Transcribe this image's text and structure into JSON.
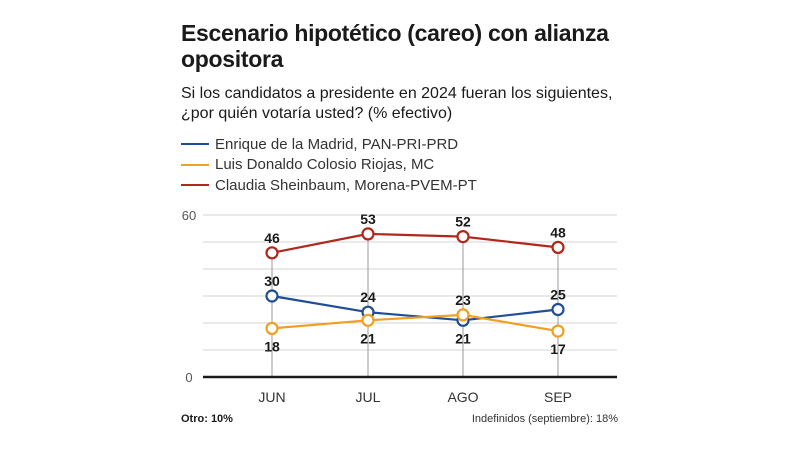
{
  "chart_data": {
    "type": "line",
    "title": "Escenario hipotético (careo) con alianza opositora",
    "subtitle": "Si los candidatos a presidente en 2024 fueran los siguientes, ¿por quién votaría usted?  (% efectivo)",
    "xlabel": "",
    "ylabel": "",
    "categories": [
      "JUN",
      "JUL",
      "AGO",
      "SEP"
    ],
    "ylim": [
      0,
      60
    ],
    "yticks": [
      0,
      60
    ],
    "grid_step": 10,
    "grid": true,
    "legend_position": "top-left",
    "series": [
      {
        "name": "Enrique de la Madrid, PAN-PRI-PRD",
        "color": "#1f4e96",
        "values": [
          30,
          24,
          21,
          25
        ]
      },
      {
        "name": "Luis Donaldo Colosio Riojas, MC",
        "color": "#f0a020",
        "values": [
          18,
          21,
          23,
          17
        ]
      },
      {
        "name": "Claudia Sheinbaum, Morena-PVEM-PT",
        "color": "#b0281c",
        "values": [
          46,
          53,
          52,
          48
        ]
      }
    ],
    "annotations": {
      "otro": "Otro: 10%",
      "indefinidos": "Indefinidos (septiembre): 18%"
    }
  }
}
